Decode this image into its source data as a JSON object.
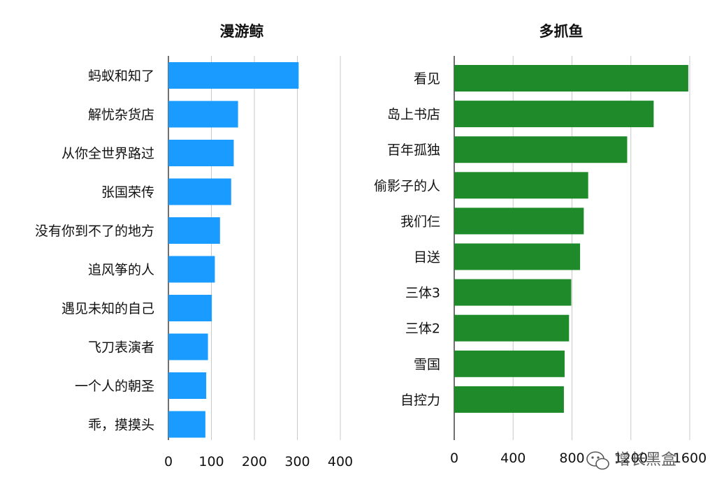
{
  "chart_data": [
    {
      "type": "bar",
      "orientation": "horizontal",
      "title": "漫游鲸",
      "color": "#1a9bff",
      "categories": [
        "蚂蚁和知了",
        "解忧杂货店",
        "从你全世界路过",
        "张国荣传",
        "没有你到不了的地方",
        "追风筝的人",
        "遇见未知的自己",
        "飞刀表演者",
        "一个人的朝圣",
        "乖，摸摸头"
      ],
      "values": [
        303,
        162,
        152,
        146,
        120,
        108,
        101,
        92,
        88,
        86
      ],
      "xlim": [
        0,
        400
      ],
      "xticks": [
        0,
        100,
        200,
        300,
        400
      ],
      "grid": "vertical"
    },
    {
      "type": "bar",
      "orientation": "horizontal",
      "title": "多抓鱼",
      "color": "#1f8a2a",
      "categories": [
        "看见",
        "岛上书店",
        "百年孤独",
        "偷影子的人",
        "我们仨",
        "目送",
        "三体3",
        "三体2",
        "雪国",
        "自控力"
      ],
      "values": [
        1590,
        1355,
        1175,
        910,
        880,
        855,
        795,
        780,
        750,
        745
      ],
      "xlim": [
        0,
        1600
      ],
      "xticks": [
        0,
        400,
        800,
        1200,
        1600
      ],
      "grid": "vertical"
    }
  ],
  "watermark": {
    "text": "增长黑盒",
    "icon": "wechat-icon"
  }
}
